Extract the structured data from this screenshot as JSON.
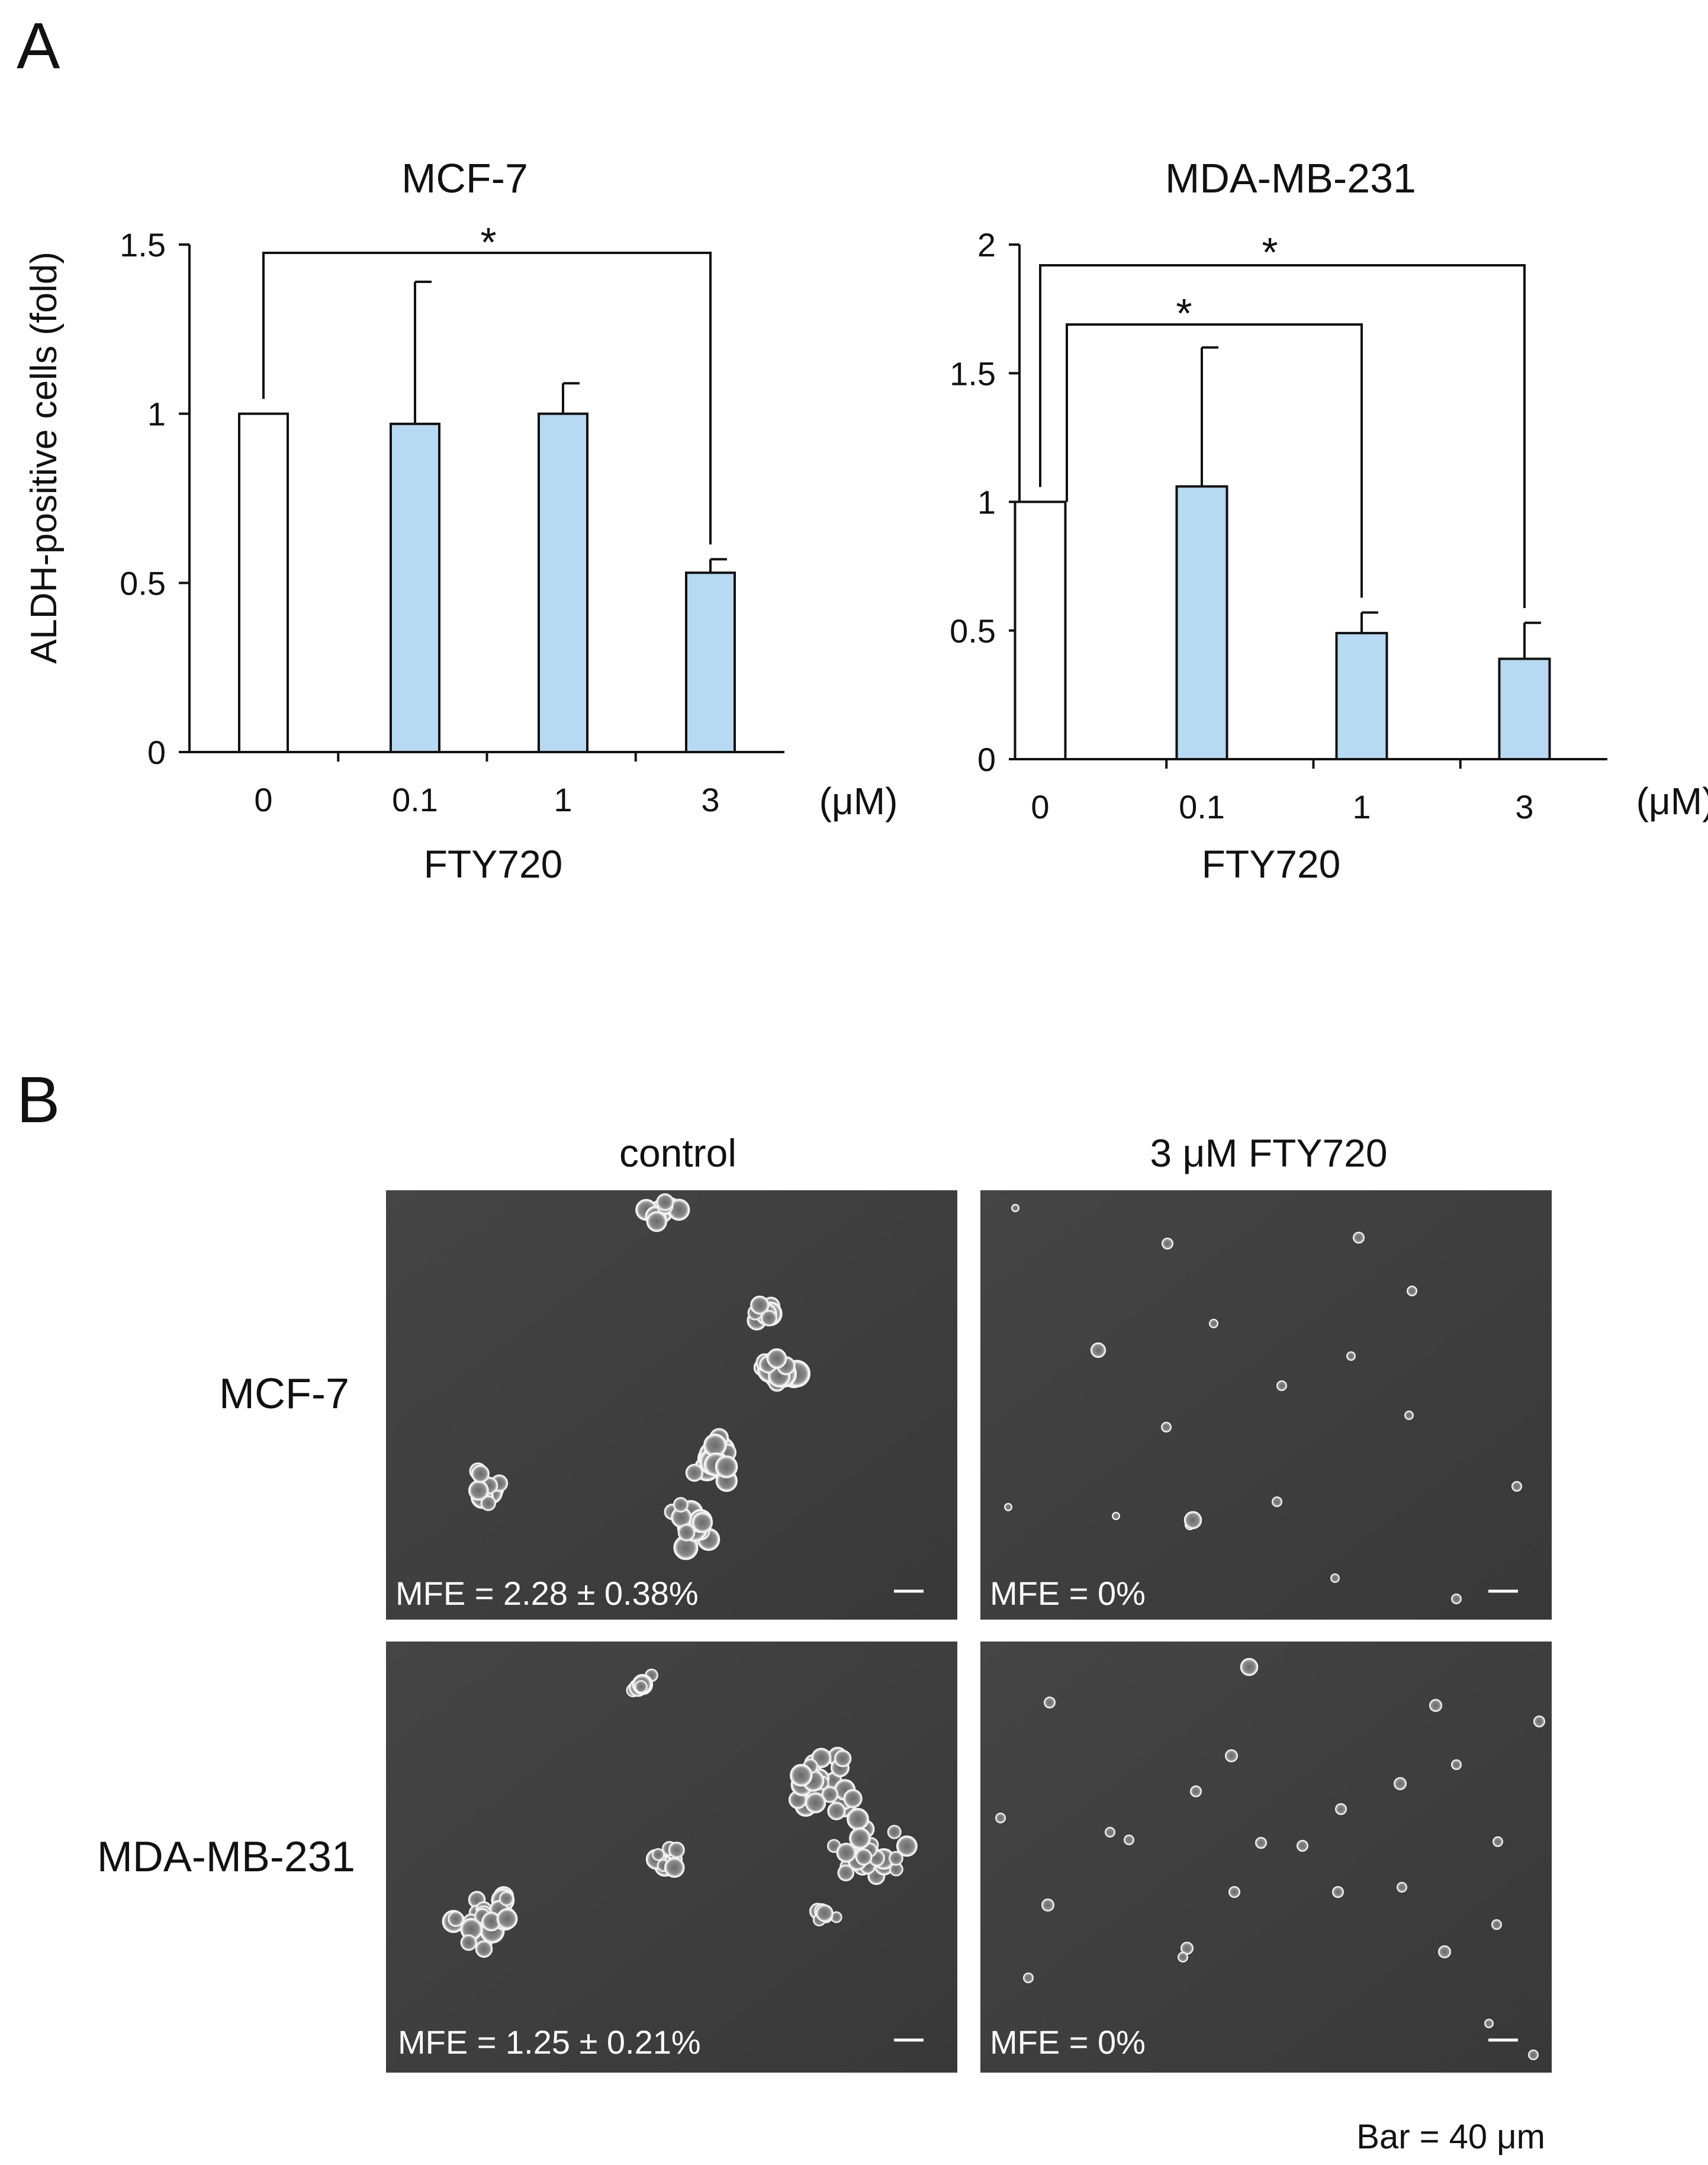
{
  "panel_a": {
    "label": "A",
    "ylabel": "ALDH-positive cells (fold)",
    "unit": "(μM)",
    "xlabel": "FTY720"
  },
  "panel_b": {
    "label": "B",
    "col_headers": [
      "control",
      "3 μM FTY720"
    ],
    "row_labels": [
      "MCF-7",
      "MDA-MB-231"
    ],
    "mfe": [
      [
        "MFE = 2.28 ± 0.38%",
        "MFE = 0%"
      ],
      [
        "MFE = 1.25 ± 0.21%",
        "MFE = 0%"
      ]
    ],
    "scale_note": "Bar = 40 μm"
  },
  "colors": {
    "treated_bar": "#b7d9f2",
    "control_bar": "#ffffff",
    "micrograph_bg": "#3f3f3f"
  },
  "chart_data": [
    {
      "type": "bar",
      "title": "MCF-7",
      "categories": [
        "0",
        "0.1",
        "1",
        "3"
      ],
      "values": [
        1.0,
        0.97,
        1.0,
        0.53
      ],
      "error_plus": [
        0,
        0.42,
        0.09,
        0.04
      ],
      "ylim": [
        0,
        1.5
      ],
      "yticks": [
        "0",
        "0.5",
        "1",
        "1.5"
      ],
      "significance": [
        {
          "from": "0",
          "to": "3",
          "marker": "*"
        }
      ]
    },
    {
      "type": "bar",
      "title": "MDA-MB-231",
      "categories": [
        "0",
        "0.1",
        "1",
        "3"
      ],
      "values": [
        1.0,
        1.06,
        0.49,
        0.39
      ],
      "error_plus": [
        0,
        0.54,
        0.08,
        0.14
      ],
      "ylim": [
        0,
        2
      ],
      "yticks": [
        "0",
        "0.5",
        "1",
        "1.5",
        "2"
      ],
      "significance": [
        {
          "from": "0",
          "to": "1",
          "marker": "*"
        },
        {
          "from": "0",
          "to": "3",
          "marker": "*"
        }
      ]
    }
  ]
}
